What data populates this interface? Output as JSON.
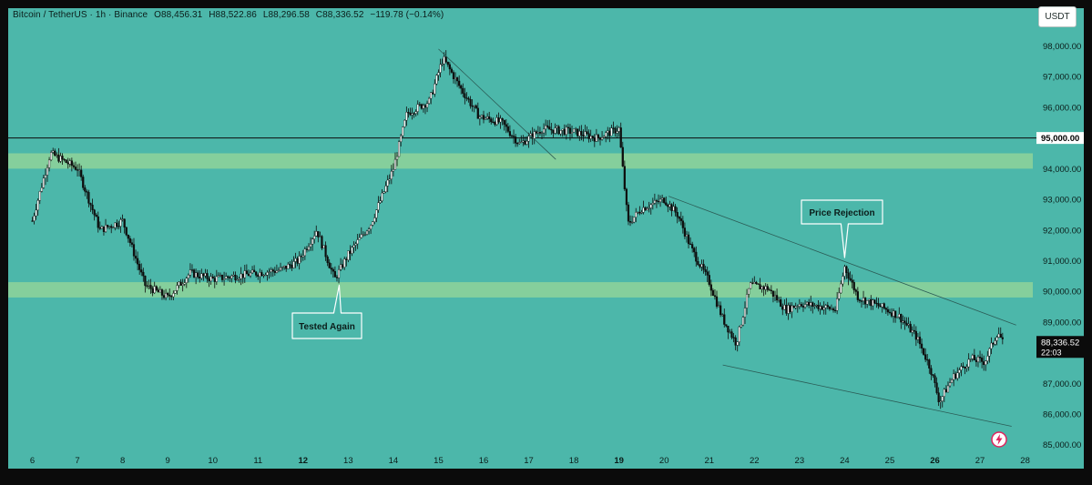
{
  "header": {
    "symbol": "Bitcoin / TetherUS · 1h · Binance",
    "open": "O88,456.31",
    "high": "H88,522.86",
    "low": "L88,296.58",
    "close": "C88,336.52",
    "change": "−119.78 (−0.14%)"
  },
  "currency_label": "USDT",
  "colors": {
    "background": "#4cb7aa",
    "zone": "#8fd39a",
    "candle": "#0d0d0d",
    "label_bg": "#4cb7aa",
    "label_border": "#ffffff",
    "axis_text": "#0b1d1a"
  },
  "annotations": {
    "tested_again": "Tested Again",
    "price_rejection": "Price Rejection"
  },
  "price_tags": {
    "level": "95,000.00",
    "last": "88,336.52",
    "countdown": "22:03"
  },
  "icons": {
    "flash": "lightning-icon"
  },
  "chart_data": {
    "type": "candlestick",
    "symbol": "Bitcoin / TetherUS",
    "interval": "1h",
    "exchange": "Binance",
    "x_ticks": [
      "6",
      "7",
      "8",
      "9",
      "10",
      "11",
      "12",
      "13",
      "14",
      "15",
      "16",
      "17",
      "18",
      "19",
      "20",
      "21",
      "22",
      "23",
      "24",
      "25",
      "26",
      "27",
      "28"
    ],
    "bold_ticks": [
      "12",
      "19",
      "26"
    ],
    "y_ticks": [
      85000,
      86000,
      87000,
      88000,
      89000,
      90000,
      91000,
      92000,
      93000,
      94000,
      95000,
      96000,
      97000,
      98000
    ],
    "ylim": [
      84900,
      98900
    ],
    "grid": false,
    "horizontal_level": 95000,
    "zones": [
      {
        "from": 94000,
        "to": 94500
      },
      {
        "from": 89800,
        "to": 90300
      }
    ],
    "series": [
      {
        "values": [
          [
            6,
            92300
          ],
          [
            6.4,
            94500
          ],
          [
            7,
            94000
          ],
          [
            7.5,
            92000
          ],
          [
            8,
            92300
          ],
          [
            8.5,
            90200
          ],
          [
            9,
            89800
          ],
          [
            9.5,
            90600
          ],
          [
            10,
            90400
          ],
          [
            10.5,
            90500
          ],
          [
            11,
            90600
          ],
          [
            11.5,
            90700
          ],
          [
            11.9,
            91000
          ],
          [
            12.3,
            92000
          ],
          [
            12.7,
            90400
          ],
          [
            13,
            91200
          ],
          [
            13.5,
            92200
          ],
          [
            14,
            94000
          ],
          [
            14.3,
            95800
          ],
          [
            14.8,
            96200
          ],
          [
            15.1,
            97600
          ],
          [
            15.5,
            96600
          ],
          [
            15.9,
            95700
          ],
          [
            16.4,
            95500
          ],
          [
            16.8,
            94800
          ],
          [
            17.3,
            95300
          ],
          [
            18,
            95200
          ],
          [
            18.5,
            95000
          ],
          [
            19,
            95300
          ],
          [
            19.2,
            92200
          ],
          [
            19.5,
            92700
          ],
          [
            20,
            93000
          ],
          [
            20.3,
            92500
          ],
          [
            20.6,
            91400
          ],
          [
            21,
            90300
          ],
          [
            21.3,
            89100
          ],
          [
            21.6,
            88300
          ],
          [
            21.9,
            90200
          ],
          [
            22.3,
            90100
          ],
          [
            22.7,
            89400
          ],
          [
            23,
            89600
          ],
          [
            23.5,
            89500
          ],
          [
            23.8,
            89400
          ],
          [
            24,
            90800
          ],
          [
            24.3,
            89800
          ],
          [
            24.8,
            89500
          ],
          [
            25.2,
            89200
          ],
          [
            25.6,
            88500
          ],
          [
            25.9,
            87500
          ],
          [
            26.1,
            86400
          ],
          [
            26.4,
            87200
          ],
          [
            26.8,
            87800
          ],
          [
            27.1,
            87700
          ],
          [
            27.4,
            88700
          ],
          [
            27.5,
            88336.52
          ]
        ]
      }
    ],
    "trendlines": [
      {
        "from": [
          15,
          97900
        ],
        "to": [
          17.6,
          94300
        ]
      },
      {
        "from": [
          20.1,
          93100
        ],
        "to": [
          27.8,
          88900
        ]
      },
      {
        "from": [
          21.3,
          87600
        ],
        "to": [
          27.7,
          85600
        ]
      }
    ],
    "annotations": [
      {
        "text": "Tested Again",
        "point": [
          12.8,
          90200
        ]
      },
      {
        "text": "Price Rejection",
        "point": [
          24,
          91100
        ]
      }
    ],
    "last_price": 88336.52,
    "level_label": 95000
  }
}
